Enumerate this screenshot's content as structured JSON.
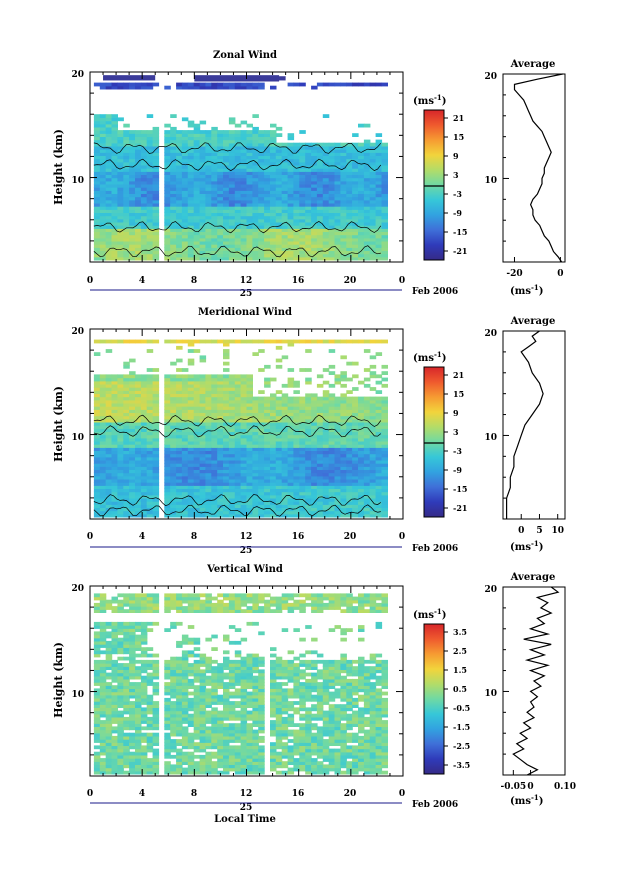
{
  "chart_data": [
    {
      "type": "heatmap",
      "title": "Zonal Wind",
      "ylabel": "Height (km)",
      "x_ticks": [
        "0",
        "4",
        "8",
        "12",
        "16",
        "20",
        "0"
      ],
      "y_ticks": [
        "20",
        "10"
      ],
      "xlim": [
        0,
        24
      ],
      "ylim": [
        2,
        20
      ],
      "date_day": "25",
      "date_label": "Feb 2006",
      "colorbar": {
        "unit_text": "(ms",
        "unit_exp": "-1",
        "ticks": [
          "21",
          "15",
          "9",
          "3",
          "-3",
          "-9",
          "-15",
          "-21"
        ],
        "range": [
          -24,
          24
        ]
      },
      "profile": {
        "title": "Average",
        "x_ticks": [
          "-20",
          "0"
        ],
        "xlim": [
          -25,
          2
        ],
        "y_ticks": [
          "20",
          "10"
        ],
        "xlabel_text": "(ms",
        "xlabel_exp": "-1",
        "points": [
          [
            0.5,
            2.0
          ],
          [
            -1,
            2.5
          ],
          [
            -3,
            3.0
          ],
          [
            -4,
            3.5
          ],
          [
            -5,
            4.0
          ],
          [
            -7,
            4.5
          ],
          [
            -8,
            5.0
          ],
          [
            -9,
            5.5
          ],
          [
            -11,
            6.0
          ],
          [
            -12,
            6.5
          ],
          [
            -12,
            7.0
          ],
          [
            -13,
            7.5
          ],
          [
            -12,
            8.0
          ],
          [
            -10,
            8.5
          ],
          [
            -9,
            9.0
          ],
          [
            -8,
            9.5
          ],
          [
            -8,
            10.0
          ],
          [
            -7,
            10.5
          ],
          [
            -7,
            11.0
          ],
          [
            -6,
            11.5
          ],
          [
            -5,
            12.0
          ],
          [
            -4,
            12.5
          ],
          [
            -5,
            13.0
          ],
          [
            -6,
            13.5
          ],
          [
            -7,
            14.0
          ],
          [
            -8,
            14.5
          ],
          [
            -10,
            15.0
          ],
          [
            -12,
            15.5
          ],
          [
            -13,
            16.0
          ],
          [
            -14,
            16.5
          ],
          [
            -15,
            17.0
          ],
          [
            -16,
            17.5
          ],
          [
            -18,
            18.0
          ],
          [
            -20,
            18.5
          ],
          [
            -20,
            19.0
          ],
          [
            -10,
            19.5
          ],
          [
            1,
            20.0
          ]
        ]
      },
      "field": "zonal",
      "contours": [
        3.0,
        5.3,
        11.2,
        12.8
      ]
    },
    {
      "type": "heatmap",
      "title": "Meridional Wind",
      "ylabel": "Height (km)",
      "x_ticks": [
        "0",
        "4",
        "8",
        "12",
        "16",
        "20",
        "0"
      ],
      "y_ticks": [
        "20",
        "10"
      ],
      "xlim": [
        0,
        24
      ],
      "ylim": [
        2,
        20
      ],
      "date_day": "25",
      "date_label": "Feb 2006",
      "colorbar": {
        "unit_text": "(ms",
        "unit_exp": "-1",
        "ticks": [
          "21",
          "15",
          "9",
          "3",
          "-3",
          "-9",
          "-15",
          "-21"
        ],
        "range": [
          -24,
          24
        ]
      },
      "profile": {
        "title": "Average",
        "x_ticks": [
          "0",
          "5",
          "10"
        ],
        "xlim": [
          -5,
          12
        ],
        "y_ticks": [
          "20",
          "10"
        ],
        "xlabel_text": "(ms",
        "xlabel_exp": "-1",
        "points": [
          [
            -4,
            2.0
          ],
          [
            -4,
            3.0
          ],
          [
            -4,
            4.0
          ],
          [
            -3,
            5.0
          ],
          [
            -3,
            6.0
          ],
          [
            -2,
            7.0
          ],
          [
            -2,
            8.0
          ],
          [
            -1,
            9.0
          ],
          [
            0,
            10.0
          ],
          [
            1,
            11.0
          ],
          [
            3,
            12.0
          ],
          [
            5,
            13.0
          ],
          [
            6,
            14.0
          ],
          [
            5,
            15.0
          ],
          [
            3,
            16.0
          ],
          [
            2,
            17.0
          ],
          [
            0,
            18.0
          ],
          [
            2,
            18.5
          ],
          [
            4,
            19.0
          ],
          [
            3,
            19.5
          ],
          [
            5,
            20.0
          ]
        ]
      },
      "field": "meridional",
      "contours": [
        2.8,
        3.8,
        10.3,
        11.3
      ]
    },
    {
      "type": "heatmap",
      "title": "Vertical Wind",
      "ylabel": "Height (km)",
      "xlabel": "Local Time",
      "x_ticks": [
        "0",
        "4",
        "8",
        "12",
        "16",
        "20",
        "0"
      ],
      "y_ticks": [
        "20",
        "10"
      ],
      "xlim": [
        0,
        24
      ],
      "ylim": [
        2,
        20
      ],
      "date_day": "25",
      "date_label": "Feb 2006",
      "colorbar": {
        "unit_text": "(ms",
        "unit_exp": "-1",
        "ticks": [
          "3.5",
          "2.5",
          "1.5",
          "0.5",
          "-0.5",
          "-1.5",
          "-2.5",
          "-3.5"
        ],
        "range": [
          -4,
          4
        ]
      },
      "profile": {
        "title": "Average",
        "x_ticks": [
          "-0.05",
          "0",
          "0.10"
        ],
        "xlim": [
          -0.08,
          0.1
        ],
        "y_ticks": [
          "20",
          "10"
        ],
        "xlabel_text": "(ms",
        "xlabel_exp": "-1",
        "points": [
          [
            -0.01,
            2.0
          ],
          [
            0.02,
            2.5
          ],
          [
            -0.01,
            3.0
          ],
          [
            -0.03,
            3.5
          ],
          [
            -0.05,
            4.0
          ],
          [
            -0.02,
            4.5
          ],
          [
            -0.04,
            5.0
          ],
          [
            -0.01,
            5.5
          ],
          [
            -0.03,
            6.0
          ],
          [
            0.0,
            6.5
          ],
          [
            -0.02,
            7.0
          ],
          [
            0.01,
            7.5
          ],
          [
            -0.01,
            8.0
          ],
          [
            0.01,
            8.5
          ],
          [
            0.0,
            9.0
          ],
          [
            0.02,
            9.5
          ],
          [
            0.0,
            10.0
          ],
          [
            0.03,
            10.5
          ],
          [
            0.01,
            11.0
          ],
          [
            0.04,
            11.5
          ],
          [
            0.0,
            12.0
          ],
          [
            0.05,
            12.5
          ],
          [
            -0.01,
            13.0
          ],
          [
            0.04,
            13.5
          ],
          [
            0.0,
            14.0
          ],
          [
            0.06,
            14.5
          ],
          [
            -0.02,
            15.0
          ],
          [
            0.05,
            15.5
          ],
          [
            0.0,
            16.0
          ],
          [
            0.04,
            16.5
          ],
          [
            0.02,
            17.0
          ],
          [
            0.06,
            17.5
          ],
          [
            0.03,
            18.0
          ],
          [
            0.05,
            18.5
          ],
          [
            0.02,
            19.0
          ],
          [
            0.08,
            19.5
          ],
          [
            0.06,
            20.0
          ]
        ]
      },
      "field": "vertical",
      "contours": []
    }
  ],
  "colors": {
    "scale": [
      "#352a87",
      "#2f3bba",
      "#3f6fd8",
      "#32a2e0",
      "#36c7d8",
      "#6fd9a4",
      "#b3dc68",
      "#f2d43c",
      "#f69b32",
      "#ef5a2e",
      "#d7262a"
    ]
  }
}
